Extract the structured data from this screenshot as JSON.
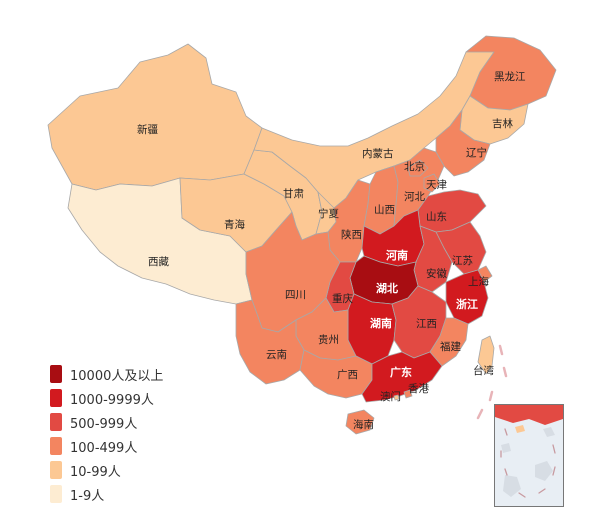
{
  "legend": {
    "items": [
      {
        "label": "10000人及以上",
        "color": "#a80d12"
      },
      {
        "label": "1000-9999人",
        "color": "#d21a1f"
      },
      {
        "label": "500-999人",
        "color": "#e24a43"
      },
      {
        "label": "100-499人",
        "color": "#f38560"
      },
      {
        "label": "10-99人",
        "color": "#fcc894"
      },
      {
        "label": "1-9人",
        "color": "#fdecd2"
      }
    ]
  },
  "provinces": [
    {
      "id": "xinjiang",
      "name": "新疆",
      "level": 4
    },
    {
      "id": "xizang",
      "name": "西藏",
      "level": 5
    },
    {
      "id": "qinghai",
      "name": "青海",
      "level": 4
    },
    {
      "id": "gansu",
      "name": "甘肃",
      "level": 4
    },
    {
      "id": "neimenggu",
      "name": "内蒙古",
      "level": 4
    },
    {
      "id": "heilongjiang",
      "name": "黑龙江",
      "level": 3
    },
    {
      "id": "jilin",
      "name": "吉林",
      "level": 4
    },
    {
      "id": "liaoning",
      "name": "辽宁",
      "level": 3
    },
    {
      "id": "ningxia",
      "name": "宁夏",
      "level": 4
    },
    {
      "id": "shaanxi",
      "name": "陕西",
      "level": 3
    },
    {
      "id": "shanxi",
      "name": "山西",
      "level": 3
    },
    {
      "id": "hebei",
      "name": "河北",
      "level": 3
    },
    {
      "id": "beijing",
      "name": "北京",
      "level": 3
    },
    {
      "id": "tianjin",
      "name": "天津",
      "level": 3
    },
    {
      "id": "shandong",
      "name": "山东",
      "level": 2
    },
    {
      "id": "henan",
      "name": "河南",
      "level": 1
    },
    {
      "id": "jiangsu",
      "name": "江苏",
      "level": 2
    },
    {
      "id": "anhui",
      "name": "安徽",
      "level": 2
    },
    {
      "id": "shanghai",
      "name": "上海",
      "level": 3
    },
    {
      "id": "hubei",
      "name": "湖北",
      "level": 0
    },
    {
      "id": "zhejiang",
      "name": "浙江",
      "level": 1
    },
    {
      "id": "chongqing",
      "name": "重庆",
      "level": 2
    },
    {
      "id": "sichuan",
      "name": "四川",
      "level": 3
    },
    {
      "id": "hunan",
      "name": "湖南",
      "level": 1
    },
    {
      "id": "jiangxi",
      "name": "江西",
      "level": 2
    },
    {
      "id": "guizhou",
      "name": "贵州",
      "level": 3
    },
    {
      "id": "yunnan",
      "name": "云南",
      "level": 3
    },
    {
      "id": "guangxi",
      "name": "广西",
      "level": 3
    },
    {
      "id": "guangdong",
      "name": "广东",
      "level": 1
    },
    {
      "id": "fujian",
      "name": "福建",
      "level": 3
    },
    {
      "id": "hainan",
      "name": "海南",
      "level": 3
    },
    {
      "id": "taiwan",
      "name": "台湾",
      "level": 4
    },
    {
      "id": "hongkong",
      "name": "香港",
      "level": 3
    },
    {
      "id": "macau",
      "name": "澳门",
      "level": 4
    }
  ]
}
